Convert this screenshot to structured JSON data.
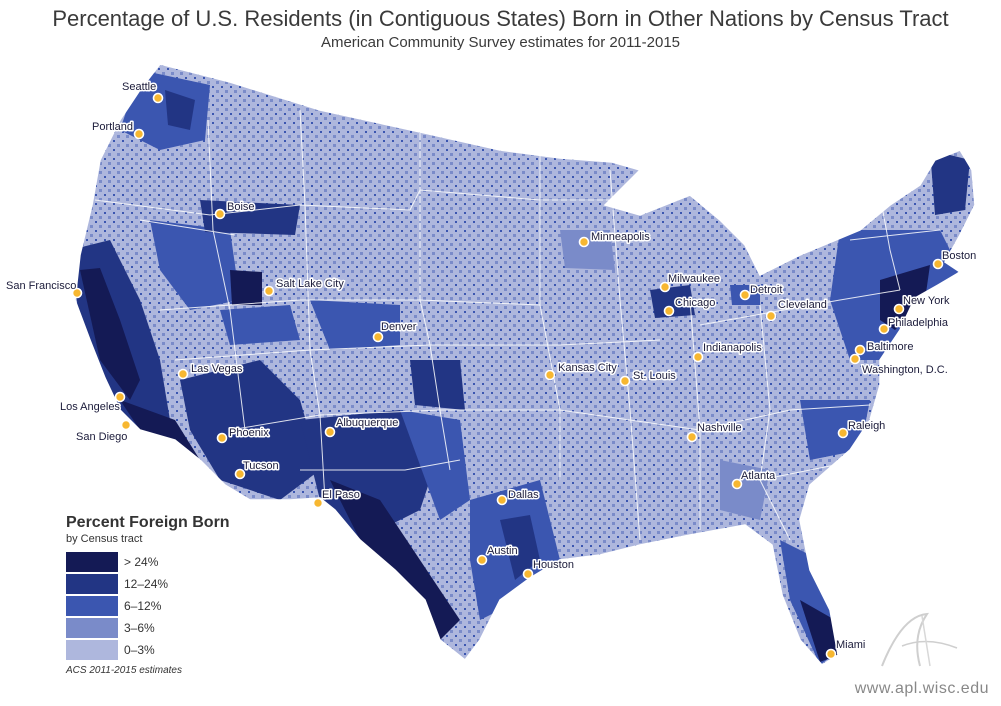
{
  "title": "Percentage of U.S. Residents (in Contiguous States) Born in Other Nations by Census Tract",
  "subtitle": "American Community Survey estimates for 2011-2015",
  "legend": {
    "title": "Percent Foreign Born",
    "subtitle": "by Census tract",
    "classes": [
      {
        "label": "> 24%",
        "color": "#141a55"
      },
      {
        "label": "12–24%",
        "color": "#223584"
      },
      {
        "label": "6–12%",
        "color": "#3b56b0"
      },
      {
        "label": "3–6%",
        "color": "#7a8bc9"
      },
      {
        "label": "0–3%",
        "color": "#aeb7dd"
      }
    ],
    "note": "ACS 2011-2015 estimates"
  },
  "cities": [
    {
      "name": "Seattle"
    },
    {
      "name": "Portland"
    },
    {
      "name": "Boise"
    },
    {
      "name": "San Francisco"
    },
    {
      "name": "Salt Lake City"
    },
    {
      "name": "Las Vegas"
    },
    {
      "name": "Los Angeles"
    },
    {
      "name": "San Diego"
    },
    {
      "name": "Phoenix"
    },
    {
      "name": "Tucson"
    },
    {
      "name": "Denver"
    },
    {
      "name": "Albuquerque"
    },
    {
      "name": "El Paso"
    },
    {
      "name": "Dallas"
    },
    {
      "name": "Austin"
    },
    {
      "name": "Houston"
    },
    {
      "name": "Kansas City"
    },
    {
      "name": "St. Louis"
    },
    {
      "name": "Minneapolis"
    },
    {
      "name": "Milwaukee"
    },
    {
      "name": "Chicago"
    },
    {
      "name": "Detroit"
    },
    {
      "name": "Indianapolis"
    },
    {
      "name": "Cleveland"
    },
    {
      "name": "Nashville"
    },
    {
      "name": "Atlanta"
    },
    {
      "name": "Miami"
    },
    {
      "name": "Raleigh"
    },
    {
      "name": "Washington, D.C."
    },
    {
      "name": "Baltimore"
    },
    {
      "name": "Philadelphia"
    },
    {
      "name": "New York"
    },
    {
      "name": "Boston"
    }
  ],
  "credit": "www.apl.wisc.edu",
  "colors": {
    "dot": "#f7b731",
    "state_border": "#ffffff",
    "background": "#ffffff"
  }
}
